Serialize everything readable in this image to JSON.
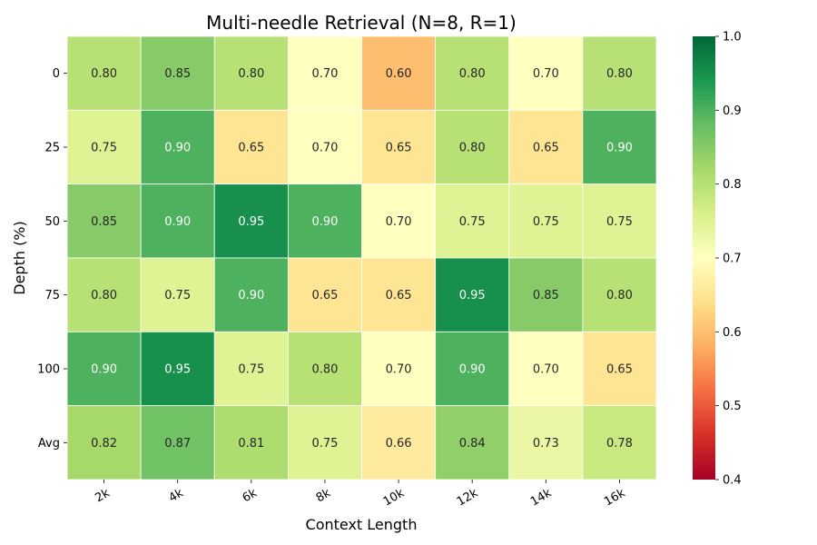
{
  "chart_data": {
    "type": "heatmap",
    "title": "Multi-needle Retrieval (N=8, R=1)",
    "xlabel": "Context Length",
    "ylabel": "Depth (%)",
    "x_categories": [
      "2k",
      "4k",
      "6k",
      "8k",
      "10k",
      "12k",
      "14k",
      "16k"
    ],
    "y_categories": [
      "0",
      "25",
      "50",
      "75",
      "100",
      "Avg"
    ],
    "values": [
      [
        0.8,
        0.85,
        0.8,
        0.7,
        0.6,
        0.8,
        0.7,
        0.8
      ],
      [
        0.75,
        0.9,
        0.65,
        0.7,
        0.65,
        0.8,
        0.65,
        0.9
      ],
      [
        0.85,
        0.9,
        0.95,
        0.9,
        0.7,
        0.75,
        0.75,
        0.75
      ],
      [
        0.8,
        0.75,
        0.9,
        0.65,
        0.65,
        0.95,
        0.85,
        0.8
      ],
      [
        0.9,
        0.95,
        0.75,
        0.8,
        0.7,
        0.9,
        0.7,
        0.65
      ],
      [
        0.82,
        0.87,
        0.81,
        0.75,
        0.66,
        0.84,
        0.73,
        0.78
      ]
    ],
    "value_format": "0.00",
    "colormap": "RdYlGn",
    "vmin": 0.4,
    "vmax": 1.0,
    "colorbar_ticks": [
      "0.4",
      "0.5",
      "0.6",
      "0.7",
      "0.8",
      "0.9",
      "1.0"
    ],
    "x_tick_rotation": "rotated",
    "grid": false
  }
}
